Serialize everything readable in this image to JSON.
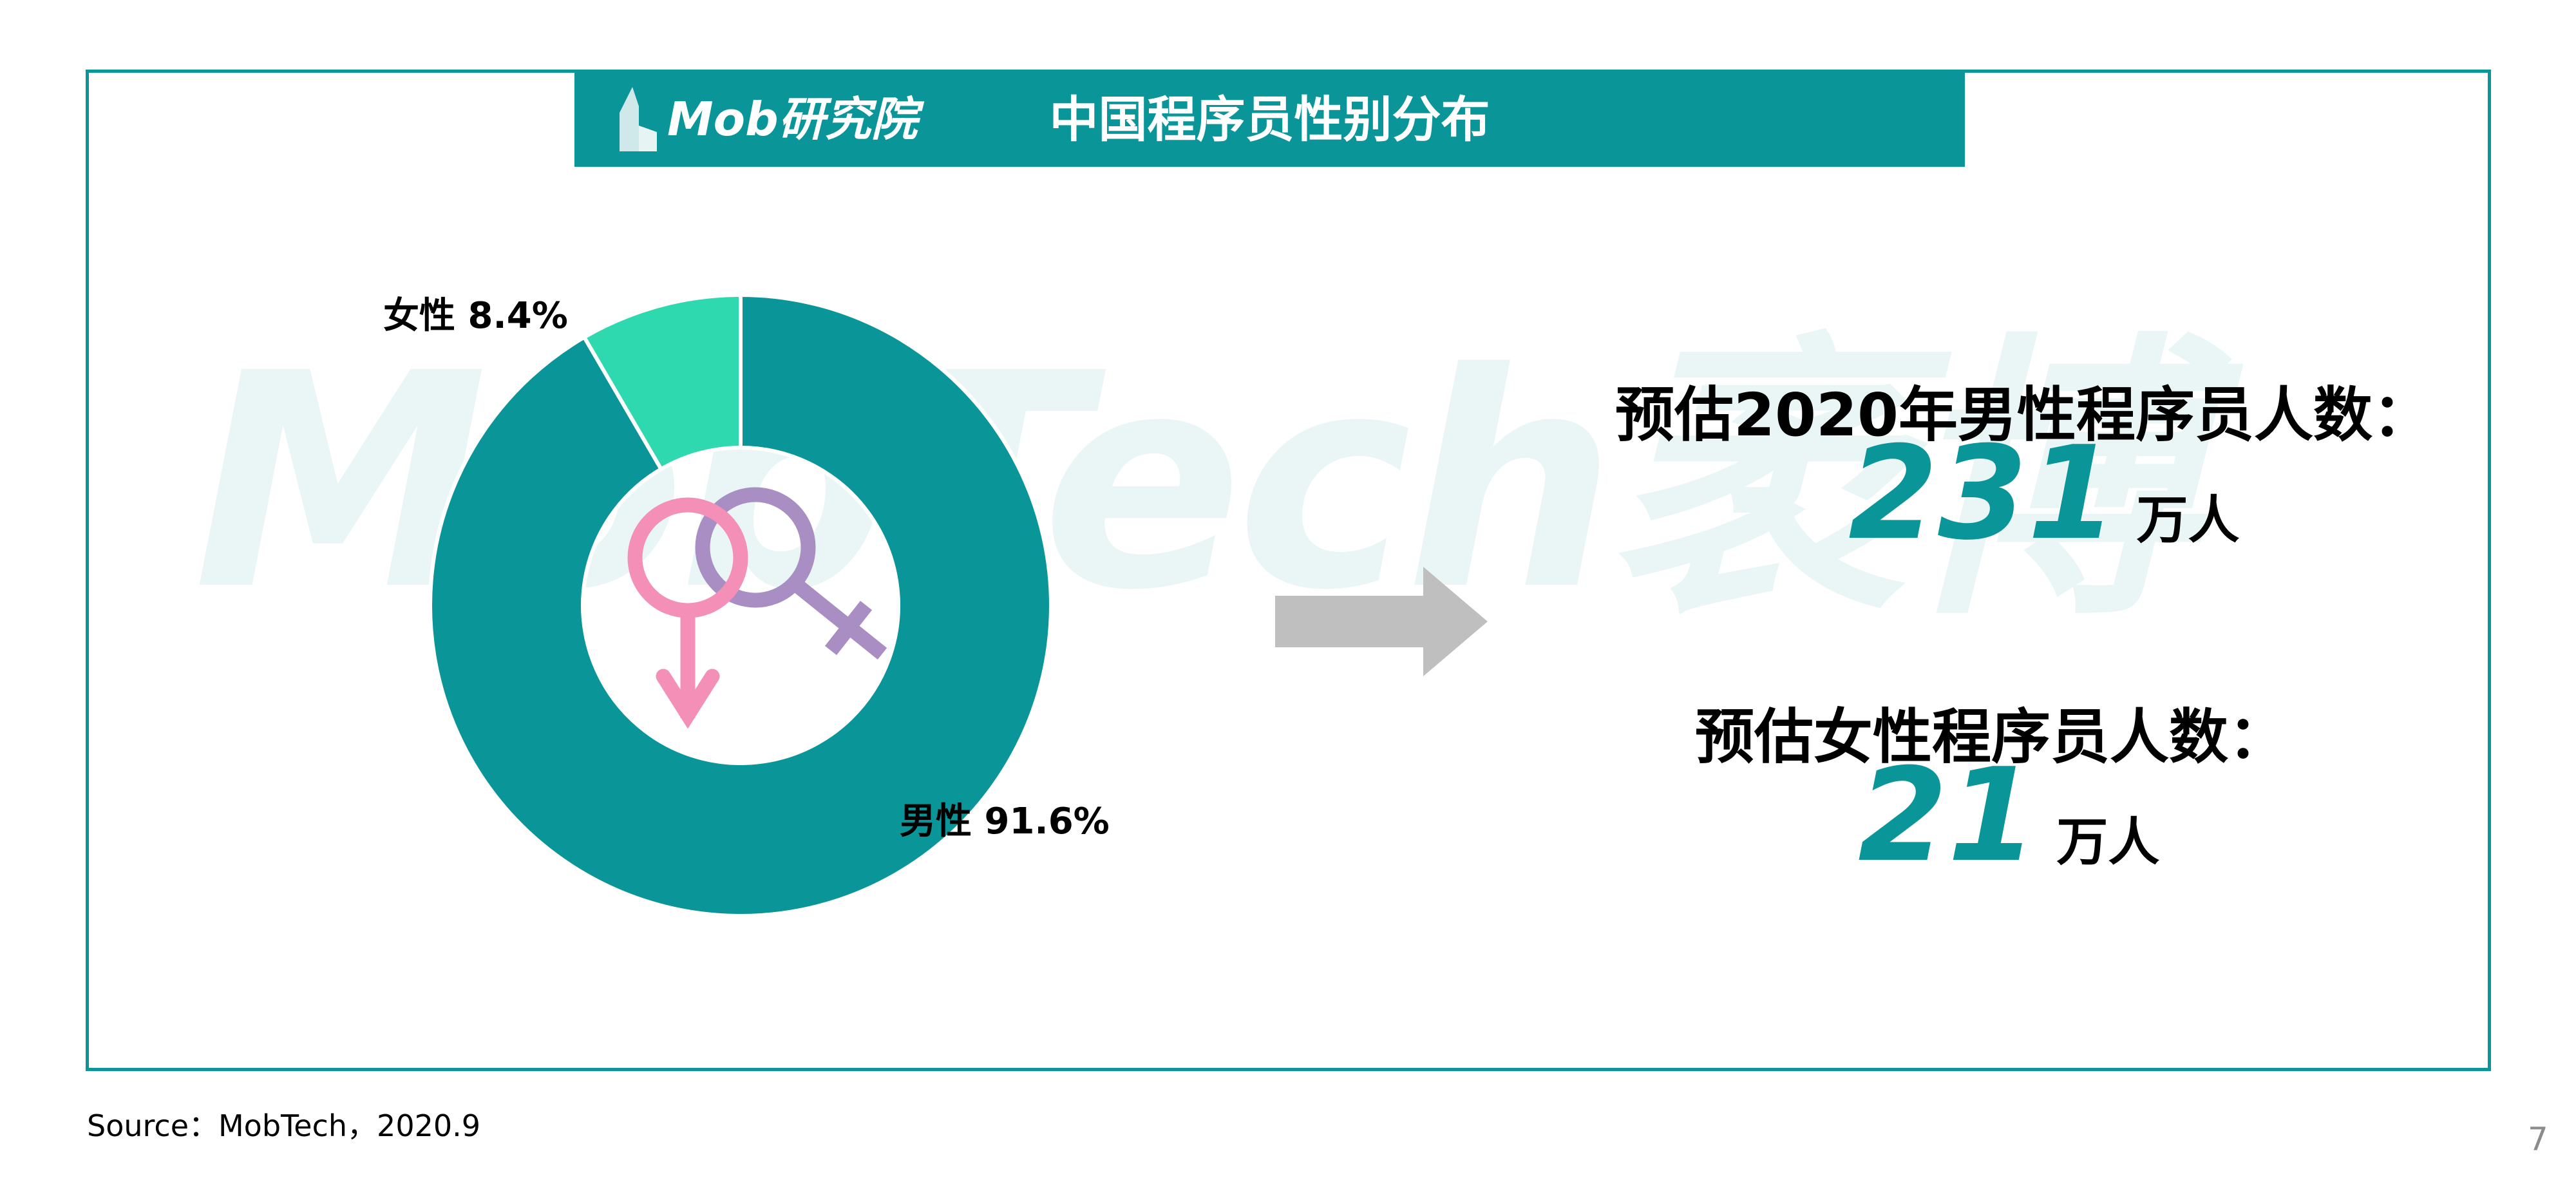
{
  "header": {
    "logo_text": "Mob研究院",
    "title": "中国程序员性别分布"
  },
  "watermark": "MobTech袤博",
  "chart_data": {
    "type": "pie",
    "variant": "donut",
    "title": "中国程序员性别分布",
    "slices": [
      {
        "name": "男性",
        "value": 91.6,
        "label": "男性 91.6%",
        "color": "#0A9599"
      },
      {
        "name": "女性",
        "value": 8.4,
        "label": "女性 8.4%",
        "color": "#2FD9B0"
      }
    ],
    "legend": "none"
  },
  "stats": {
    "male_label": "预估2020年男性程序员人数：",
    "male_value": "231",
    "male_unit": "万人",
    "female_label": "预估女性程序员人数：",
    "female_value": "21",
    "female_unit": "万人"
  },
  "colors": {
    "accent": "#0A9599",
    "male_symbol": "#F48FB8",
    "female_symbol": "#A98EC3",
    "arrow": "#BFBFBF"
  },
  "icons": {
    "center": "gender-symbols-icon",
    "arrow": "arrow-right-icon"
  },
  "footer": {
    "source": "Source：MobTech，2020.9",
    "page_number": "7"
  }
}
